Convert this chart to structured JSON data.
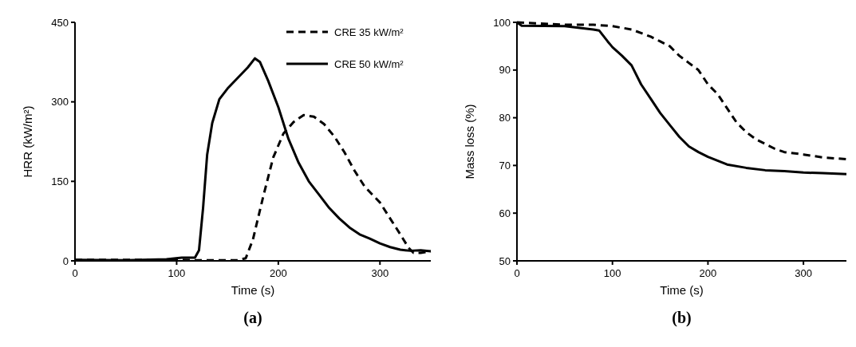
{
  "chart_data": [
    {
      "type": "line",
      "xlabel": "Time (s)",
      "ylabel": "HRR (kW/m²)",
      "xlim": [
        0,
        350
      ],
      "xticks": [
        0,
        100,
        200,
        300
      ],
      "ylim": [
        0,
        450
      ],
      "yticks": [
        0,
        150,
        300,
        450
      ],
      "legend": "top right",
      "grid": false,
      "annotations": [
        "(a)"
      ],
      "series": [
        {
          "name": "CRE 35 kW/m²",
          "color": "#000000",
          "line_style": "dashed",
          "x": [
            0,
            100,
            120,
            160,
            168,
            175,
            185,
            195,
            205,
            215,
            225,
            235,
            245,
            255,
            265,
            275,
            285,
            300,
            310,
            320,
            328,
            333,
            340,
            350
          ],
          "values": [
            2,
            2,
            1,
            1,
            5,
            40,
            120,
            195,
            240,
            262,
            275,
            272,
            258,
            235,
            205,
            170,
            140,
            110,
            80,
            50,
            25,
            15,
            15,
            18
          ]
        },
        {
          "name": "CRE 50 kW/m²",
          "color": "#000000",
          "line_style": "solid",
          "x": [
            0,
            50,
            90,
            105,
            118,
            122,
            126,
            130,
            135,
            142,
            150,
            160,
            170,
            177,
            182,
            190,
            200,
            210,
            220,
            230,
            240,
            250,
            260,
            270,
            280,
            290,
            300,
            310,
            320,
            330,
            340,
            350
          ],
          "values": [
            2,
            1,
            3,
            6,
            6,
            20,
            100,
            200,
            260,
            305,
            325,
            345,
            365,
            382,
            375,
            340,
            290,
            230,
            185,
            150,
            125,
            100,
            80,
            63,
            50,
            42,
            33,
            26,
            21,
            19,
            20,
            18
          ]
        }
      ]
    },
    {
      "type": "line",
      "xlabel": "Time (s)",
      "ylabel": "Mass loss (%)",
      "xlim": [
        0,
        345
      ],
      "xticks": [
        0,
        100,
        200,
        300
      ],
      "ylim": [
        50,
        100
      ],
      "yticks": [
        50,
        60,
        70,
        80,
        90,
        100
      ],
      "legend": false,
      "grid": false,
      "annotations": [
        "(b)"
      ],
      "series": [
        {
          "color": "#000000",
          "line_style": "dashed",
          "x": [
            0,
            50,
            80,
            100,
            120,
            140,
            150,
            160,
            170,
            180,
            190,
            200,
            210,
            220,
            230,
            240,
            250,
            260,
            270,
            280,
            300,
            320,
            345
          ],
          "values": [
            100,
            99.5,
            99.5,
            99.2,
            98.5,
            97,
            96,
            95,
            93,
            91.5,
            90,
            87,
            85,
            82,
            79,
            77,
            75.5,
            74.5,
            73.5,
            72.8,
            72.3,
            71.7,
            71.3
          ]
        },
        {
          "color": "#000000",
          "line_style": "solid",
          "x": [
            0,
            5,
            50,
            80,
            86,
            95,
            100,
            110,
            120,
            130,
            140,
            150,
            160,
            170,
            180,
            190,
            200,
            210,
            220,
            240,
            260,
            280,
            300,
            320,
            345
          ],
          "values": [
            100,
            99.3,
            99.2,
            98.5,
            98.3,
            96,
            94.8,
            93,
            91,
            87,
            84,
            81,
            78.5,
            76,
            74,
            72.8,
            71.8,
            71,
            70.2,
            69.5,
            69,
            68.8,
            68.5,
            68.4,
            68.2
          ]
        }
      ]
    }
  ]
}
